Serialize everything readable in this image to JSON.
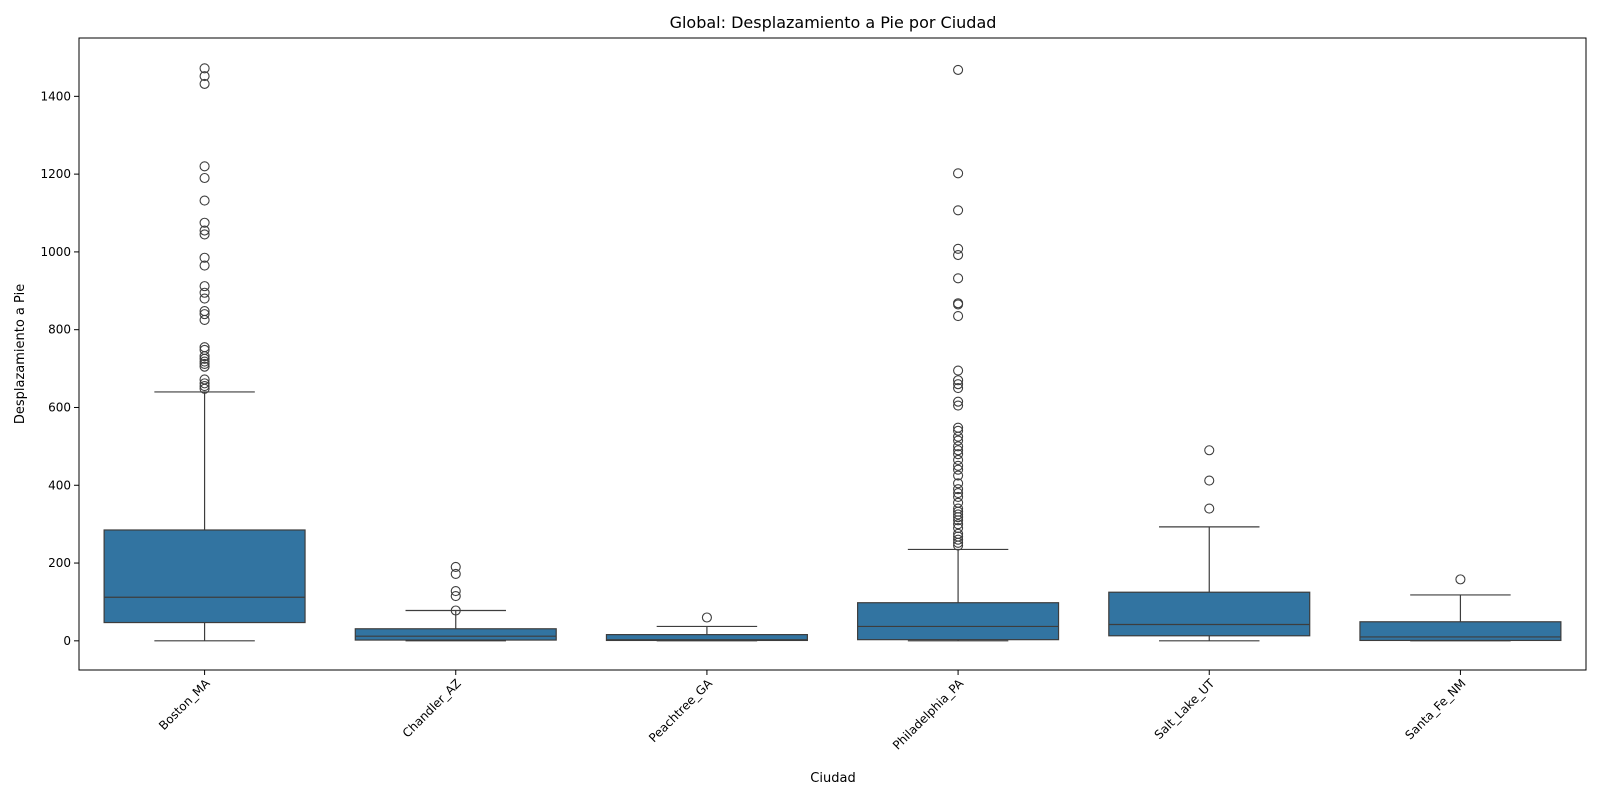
{
  "chart_data": {
    "type": "box",
    "title": "Global: Desplazamiento a Pie por Ciudad",
    "xlabel": "Ciudad",
    "ylabel": "Desplazamiento a Pie",
    "ylim": [
      -75,
      1550
    ],
    "yticks": [
      0,
      200,
      400,
      600,
      800,
      1000,
      1200,
      1400
    ],
    "grid": false,
    "legend": "none",
    "colors": {
      "box_fill": "#3274a1",
      "line": "#3d3d3d",
      "axis": "#000000"
    },
    "categories": [
      "Boston_MA",
      "Chandler_AZ",
      "Peachtree_GA",
      "Philadelphia_PA",
      "Salt_Lake_UT",
      "Santa_Fe_NM"
    ],
    "boxes": [
      {
        "category": "Boston_MA",
        "whisker_low": 0,
        "q1": 47,
        "median": 112,
        "q3": 285,
        "whisker_high": 640,
        "outliers": [
          648,
          655,
          662,
          672,
          705,
          712,
          718,
          725,
          732,
          748,
          755,
          825,
          840,
          848,
          880,
          895,
          912,
          965,
          985,
          1045,
          1055,
          1075,
          1132,
          1190,
          1220,
          1432,
          1452,
          1472
        ]
      },
      {
        "category": "Chandler_AZ",
        "whisker_low": 0,
        "q1": 2,
        "median": 12,
        "q3": 31,
        "whisker_high": 78,
        "outliers": [
          78,
          115,
          128,
          172,
          190
        ]
      },
      {
        "category": "Peachtree_GA",
        "whisker_low": 0,
        "q1": 1,
        "median": 3,
        "q3": 16,
        "whisker_high": 37,
        "outliers": [
          60
        ]
      },
      {
        "category": "Philadelphia_PA",
        "whisker_low": 0,
        "q1": 3,
        "median": 37,
        "q3": 98,
        "whisker_high": 235,
        "outliers": [
          245,
          252,
          260,
          268,
          275,
          290,
          300,
          310,
          318,
          325,
          332,
          340,
          355,
          370,
          380,
          390,
          405,
          425,
          440,
          450,
          465,
          480,
          490,
          500,
          515,
          525,
          540,
          548,
          605,
          615,
          650,
          660,
          670,
          695,
          835,
          865,
          868,
          932,
          992,
          1008,
          1107,
          1202,
          1468
        ]
      },
      {
        "category": "Salt_Lake_UT",
        "whisker_low": 0,
        "q1": 13,
        "median": 42,
        "q3": 125,
        "whisker_high": 293,
        "outliers": [
          340,
          412,
          490
        ]
      },
      {
        "category": "Santa_Fe_NM",
        "whisker_low": 0,
        "q1": 1,
        "median": 10,
        "q3": 49,
        "whisker_high": 118,
        "outliers": [
          158
        ]
      }
    ]
  }
}
